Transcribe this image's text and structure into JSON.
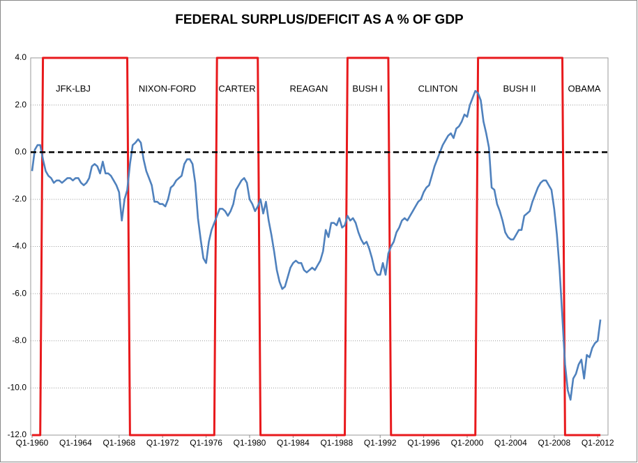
{
  "chart_data": {
    "type": "line",
    "title": "FEDERAL SURPLUS/DEFICIT AS A % OF GDP",
    "categories": [
      "Q1-1960",
      null,
      null,
      null,
      null,
      null,
      null,
      null,
      null,
      null,
      null,
      null,
      null,
      null,
      null,
      null,
      "Q1-1964",
      null,
      null,
      null,
      null,
      null,
      null,
      null,
      null,
      null,
      null,
      null,
      null,
      null,
      null,
      null,
      "Q1-1968",
      null,
      null,
      null,
      null,
      null,
      null,
      null,
      null,
      null,
      null,
      null,
      null,
      null,
      null,
      null,
      "Q1-1972",
      null,
      null,
      null,
      null,
      null,
      null,
      null,
      null,
      null,
      null,
      null,
      null,
      null,
      null,
      null,
      "Q1-1976",
      null,
      null,
      null,
      null,
      null,
      null,
      null,
      null,
      null,
      null,
      null,
      null,
      null,
      null,
      null,
      "Q1-1980",
      null,
      null,
      null,
      null,
      null,
      null,
      null,
      null,
      null,
      null,
      null,
      null,
      null,
      null,
      null,
      "Q1-1984",
      null,
      null,
      null,
      null,
      null,
      null,
      null,
      null,
      null,
      null,
      null,
      null,
      null,
      null,
      null,
      "Q1-1988",
      null,
      null,
      null,
      null,
      null,
      null,
      null,
      null,
      null,
      null,
      null,
      null,
      null,
      null,
      null,
      "Q1-1992",
      null,
      null,
      null,
      null,
      null,
      null,
      null,
      null,
      null,
      null,
      null,
      null,
      null,
      null,
      null,
      "Q1-1996",
      null,
      null,
      null,
      null,
      null,
      null,
      null,
      null,
      null,
      null,
      null,
      null,
      null,
      null,
      null,
      "Q1-2000",
      null,
      null,
      null,
      null,
      null,
      null,
      null,
      null,
      null,
      null,
      null,
      null,
      null,
      null,
      null,
      "Q1-2004",
      null,
      null,
      null,
      null,
      null,
      null,
      null,
      null,
      null,
      null,
      null,
      null,
      null,
      null,
      null,
      "Q1-2008",
      null,
      null,
      null,
      null,
      null,
      null,
      null,
      null,
      null,
      null,
      null,
      null,
      null,
      null,
      null,
      "Q1-2012",
      null
    ],
    "series": [
      {
        "color": "#4f81bd",
        "values": [
          -0.8,
          0.1,
          0.3,
          0.3,
          -0.3,
          -0.8,
          -1.0,
          -1.1,
          -1.3,
          -1.2,
          -1.2,
          -1.3,
          -1.2,
          -1.1,
          -1.1,
          -1.2,
          -1.1,
          -1.1,
          -1.3,
          -1.4,
          -1.3,
          -1.1,
          -0.6,
          -0.5,
          -0.6,
          -0.9,
          -0.4,
          -0.9,
          -0.9,
          -1.0,
          -1.2,
          -1.4,
          -1.7,
          -2.9,
          -2.0,
          -1.6,
          -0.5,
          0.3,
          0.4,
          0.55,
          0.4,
          -0.3,
          -0.8,
          -1.1,
          -1.4,
          -2.1,
          -2.1,
          -2.2,
          -2.2,
          -2.3,
          -2.0,
          -1.5,
          -1.4,
          -1.2,
          -1.1,
          -1.0,
          -0.5,
          -0.3,
          -0.3,
          -0.5,
          -1.3,
          -2.8,
          -3.7,
          -4.5,
          -4.7,
          -3.8,
          -3.3,
          -3.0,
          -2.7,
          -2.4,
          -2.4,
          -2.5,
          -2.7,
          -2.5,
          -2.2,
          -1.6,
          -1.4,
          -1.2,
          -1.1,
          -1.3,
          -2.0,
          -2.2,
          -2.5,
          -2.3,
          -2.0,
          -2.6,
          -2.1,
          -2.9,
          -3.5,
          -4.2,
          -5.0,
          -5.5,
          -5.8,
          -5.7,
          -5.3,
          -4.9,
          -4.7,
          -4.6,
          -4.7,
          -4.7,
          -5.0,
          -5.1,
          -5.0,
          -4.9,
          -5.0,
          -4.8,
          -4.6,
          -4.2,
          -3.3,
          -3.6,
          -3.0,
          -3.0,
          -3.1,
          -2.8,
          -3.2,
          -3.1,
          -2.7,
          -2.9,
          -2.8,
          -3.0,
          -3.4,
          -3.7,
          -3.9,
          -3.8,
          -4.1,
          -4.5,
          -5.0,
          -5.2,
          -5.2,
          -4.7,
          -5.2,
          -4.3,
          -4.0,
          -3.8,
          -3.4,
          -3.2,
          -2.9,
          -2.8,
          -2.9,
          -2.7,
          -2.5,
          -2.3,
          -2.1,
          -2.0,
          -1.7,
          -1.5,
          -1.4,
          -1.0,
          -0.6,
          -0.3,
          0.0,
          0.3,
          0.5,
          0.7,
          0.8,
          0.6,
          1.0,
          1.1,
          1.3,
          1.6,
          1.5,
          2.0,
          2.3,
          2.6,
          2.5,
          2.2,
          1.3,
          0.8,
          0.2,
          -1.5,
          -1.6,
          -2.2,
          -2.5,
          -2.9,
          -3.4,
          -3.6,
          -3.7,
          -3.7,
          -3.5,
          -3.3,
          -3.3,
          -2.7,
          -2.6,
          -2.5,
          -2.1,
          -1.8,
          -1.5,
          -1.3,
          -1.2,
          -1.2,
          -1.4,
          -1.6,
          -2.4,
          -3.5,
          -5.0,
          -7.0,
          -9.0,
          -10.1,
          -10.5,
          -9.6,
          -9.4,
          -9.0,
          -8.8,
          -9.6,
          -8.6,
          -8.7,
          -8.3,
          -8.1,
          -8.0,
          -7.1
        ]
      },
      {
        "color": "#e8191c",
        "values": [
          -12,
          -12,
          -12,
          -12,
          4,
          4,
          4,
          4,
          4,
          4,
          4,
          4,
          4,
          4,
          4,
          4,
          4,
          4,
          4,
          4,
          4,
          4,
          4,
          4,
          4,
          4,
          4,
          4,
          4,
          4,
          4,
          4,
          4,
          4,
          4,
          4,
          -12,
          -12,
          -12,
          -12,
          -12,
          -12,
          -12,
          -12,
          -12,
          -12,
          -12,
          -12,
          -12,
          -12,
          -12,
          -12,
          -12,
          -12,
          -12,
          -12,
          -12,
          -12,
          -12,
          -12,
          -12,
          -12,
          -12,
          -12,
          -12,
          -12,
          -12,
          -12,
          4,
          4,
          4,
          4,
          4,
          4,
          4,
          4,
          4,
          4,
          4,
          4,
          4,
          4,
          4,
          4,
          -12,
          -12,
          -12,
          -12,
          -12,
          -12,
          -12,
          -12,
          -12,
          -12,
          -12,
          -12,
          -12,
          -12,
          -12,
          -12,
          -12,
          -12,
          -12,
          -12,
          -12,
          -12,
          -12,
          -12,
          -12,
          -12,
          -12,
          -12,
          -12,
          -12,
          -12,
          -12,
          4,
          4,
          4,
          4,
          4,
          4,
          4,
          4,
          4,
          4,
          4,
          4,
          4,
          4,
          4,
          4,
          -12,
          -12,
          -12,
          -12,
          -12,
          -12,
          -12,
          -12,
          -12,
          -12,
          -12,
          -12,
          -12,
          -12,
          -12,
          -12,
          -12,
          -12,
          -12,
          -12,
          -12,
          -12,
          -12,
          -12,
          -12,
          -12,
          -12,
          -12,
          -12,
          -12,
          -12,
          -12,
          4,
          4,
          4,
          4,
          4,
          4,
          4,
          4,
          4,
          4,
          4,
          4,
          4,
          4,
          4,
          4,
          4,
          4,
          4,
          4,
          4,
          4,
          4,
          4,
          4,
          4,
          4,
          4,
          4,
          4,
          4,
          4,
          -12,
          -12,
          -12,
          -12,
          -12,
          -12,
          -12,
          -12,
          -12,
          -12,
          -12,
          -12,
          -12,
          -12
        ]
      }
    ],
    "annotations": [
      "JFK-LBJ",
      "NIXON-FORD",
      "CARTER",
      "REAGAN",
      "BUSH I",
      "CLINTON",
      "BUSH II",
      "OBAMA"
    ],
    "reference_line": 0,
    "ylim": [
      -12,
      4
    ],
    "yticks": [
      {
        "value": -12,
        "label": "-12.0"
      },
      {
        "value": -10,
        "label": "-10.0"
      },
      {
        "value": -8,
        "label": "-8.0"
      },
      {
        "value": -6,
        "label": "-6.0"
      },
      {
        "value": -4,
        "label": "-4.0"
      },
      {
        "value": -2,
        "label": "-2.0"
      },
      {
        "value": 0,
        "label": "0.0"
      },
      {
        "value": 2,
        "label": "2.0"
      },
      {
        "value": 4,
        "label": "4.0"
      }
    ],
    "grid": true
  }
}
